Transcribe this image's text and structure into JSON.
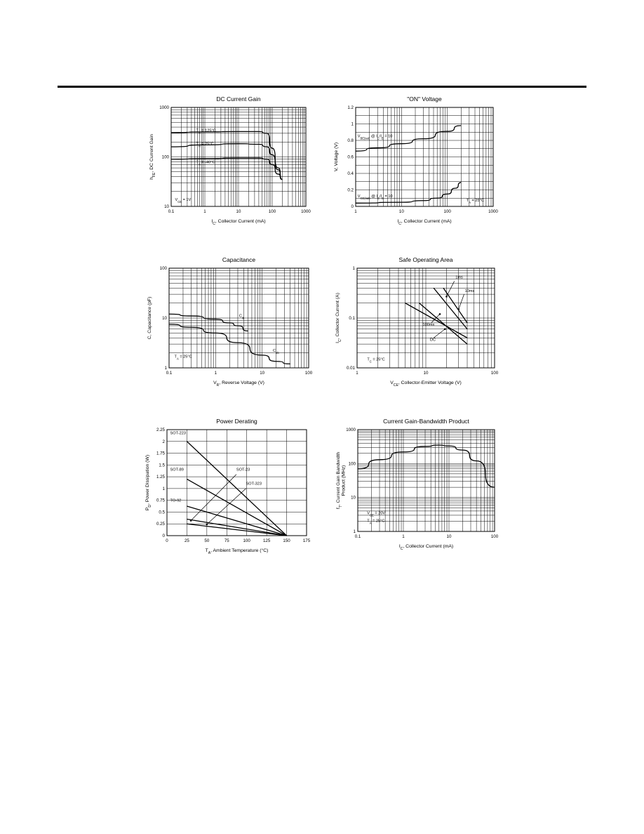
{
  "page": {
    "rule_color": "#000000"
  },
  "chart_data": [
    {
      "id": "dc-gain",
      "type": "line",
      "title": "DC Current Gain",
      "xlabel": "I_C, Collector Current (mA)",
      "ylabel": "h_FE, DC Current Gain",
      "xscale": "log",
      "yscale": "log",
      "xlim": [
        0.1,
        1000
      ],
      "ylim": [
        10,
        1000
      ],
      "xticks": [
        "0.1",
        "1",
        "10",
        "100",
        "1000"
      ],
      "yticks": [
        "10",
        "100",
        "1000"
      ],
      "grid": true,
      "series": [
        {
          "name": "T_A = 125°C",
          "x": [
            0.1,
            1,
            10,
            40,
            70,
            100,
            150,
            200
          ],
          "y": [
            310,
            320,
            325,
            325,
            300,
            150,
            60,
            35
          ]
        },
        {
          "name": "T_A = 25°C",
          "x": [
            0.1,
            1,
            10,
            40,
            70,
            100,
            150,
            200
          ],
          "y": [
            160,
            175,
            185,
            180,
            160,
            110,
            55,
            35
          ]
        },
        {
          "name": "T_A = -40°C",
          "x": [
            0.1,
            1,
            10,
            40,
            70,
            100,
            150,
            200
          ],
          "y": [
            90,
            92,
            95,
            95,
            90,
            70,
            45,
            35
          ]
        }
      ],
      "annotations": [
        "V_CE = 1V"
      ]
    },
    {
      "id": "on-voltage",
      "type": "line",
      "title": "\"ON\" Voltage",
      "xlabel": "I_C, Collector Current (mA)",
      "ylabel": "V, Voltage (V)",
      "xscale": "log",
      "yscale": "linear",
      "xlim": [
        1,
        1000
      ],
      "ylim": [
        0,
        1.2
      ],
      "xticks": [
        "1",
        "10",
        "100",
        "1000"
      ],
      "yticks": [
        "0",
        "0.2",
        "0.4",
        "0.6",
        "0.8",
        "1",
        "1.2"
      ],
      "grid": true,
      "series": [
        {
          "name": "V_BE(sat) @ I_C/I_B = 10",
          "x": [
            1,
            3,
            10,
            30,
            100,
            200
          ],
          "y": [
            0.67,
            0.71,
            0.76,
            0.82,
            0.91,
            0.98
          ]
        },
        {
          "name": "V_CE(sat) @ I_C/I_B = 10",
          "x": [
            1,
            10,
            30,
            60,
            100,
            150,
            200
          ],
          "y": [
            0.04,
            0.05,
            0.07,
            0.1,
            0.15,
            0.22,
            0.29
          ]
        }
      ],
      "annotations": [
        "T_A = 25°C"
      ]
    },
    {
      "id": "capacitance",
      "type": "line",
      "title": "Capacitance",
      "xlabel": "V_R, Reverse Voltage (V)",
      "ylabel": "C, Capacitance (pF)",
      "xscale": "log",
      "yscale": "log",
      "xlim": [
        0.1,
        100
      ],
      "ylim": [
        1,
        100
      ],
      "xticks": [
        "0.1",
        "1",
        "10",
        "100"
      ],
      "yticks": [
        "1",
        "10",
        "100"
      ],
      "grid": true,
      "series": [
        {
          "name": "C_ib",
          "x": [
            0.1,
            0.3,
            1,
            2,
            3,
            5
          ],
          "y": [
            12,
            11,
            9.5,
            8,
            7,
            5.5
          ]
        },
        {
          "name": "C_ob",
          "x": [
            0.1,
            0.3,
            1,
            3,
            10,
            20,
            40
          ],
          "y": [
            7.5,
            6.5,
            5,
            3.2,
            1.8,
            1.35,
            1.2
          ]
        }
      ],
      "annotations": [
        "T_A = 25°C"
      ]
    },
    {
      "id": "soa",
      "type": "line",
      "title": "Safe Operating Area",
      "xlabel": "V_CE, Collector-Emitter Voltage (V)",
      "ylabel": "I_C, Collector Current (A)",
      "xscale": "log",
      "yscale": "log",
      "xlim": [
        1,
        100
      ],
      "ylim": [
        0.01,
        1
      ],
      "xticks": [
        "1",
        "10",
        "100"
      ],
      "yticks": [
        "0.01",
        "0.1",
        "1"
      ],
      "grid": true,
      "series": [
        {
          "name": "1ms",
          "x": [
            13,
            40
          ],
          "y": [
            0.4,
            0.06
          ]
        },
        {
          "name": "10ms",
          "x": [
            18,
            40
          ],
          "y": [
            0.4,
            0.08
          ]
        },
        {
          "name": "100ms",
          "x": [
            5,
            40
          ],
          "y": [
            0.2,
            0.04
          ]
        },
        {
          "name": "DC",
          "x": [
            8,
            40
          ],
          "y": [
            0.2,
            0.03
          ]
        }
      ],
      "annotations": [
        "T_C = 25°C"
      ]
    },
    {
      "id": "power-derating",
      "type": "line",
      "title": "Power Derating",
      "xlabel": "T_A, Ambient Temperature (°C)",
      "ylabel": "P_D, Power Dissipation (W)",
      "xscale": "linear",
      "yscale": "linear",
      "xlim": [
        0,
        175
      ],
      "ylim": [
        0,
        2.25
      ],
      "xticks": [
        "0",
        "25",
        "50",
        "75",
        "100",
        "125",
        "150",
        "175"
      ],
      "yticks": [
        "0",
        "0.25",
        "0.5",
        "0.75",
        "1",
        "1.25",
        "1.5",
        "1.75",
        "2",
        "2.25"
      ],
      "grid": true,
      "series": [
        {
          "name": "SOT-223",
          "x": [
            25,
            150
          ],
          "y": [
            2.0,
            0
          ]
        },
        {
          "name": "SOT-89",
          "x": [
            25,
            150
          ],
          "y": [
            1.2,
            0
          ]
        },
        {
          "name": "TO-92",
          "x": [
            25,
            150
          ],
          "y": [
            0.625,
            0
          ]
        },
        {
          "name": "SOT-23",
          "x": [
            25,
            150
          ],
          "y": [
            0.35,
            0
          ]
        },
        {
          "name": "SOT-323",
          "x": [
            25,
            150
          ],
          "y": [
            0.25,
            0
          ]
        }
      ],
      "annotations": []
    },
    {
      "id": "gain-bandwidth",
      "type": "line",
      "title": "Current Gain-Bandwidth Product",
      "xlabel": "I_C, Collector Current (mA)",
      "ylabel": "f_T, Current Gain Bandwidth Product (MHz)",
      "xscale": "log",
      "yscale": "log",
      "xlim": [
        0.1,
        100
      ],
      "ylim": [
        1,
        1000
      ],
      "xticks": [
        "0.1",
        "1",
        "10",
        "100"
      ],
      "yticks": [
        "1",
        "10",
        "100",
        "1000"
      ],
      "grid": true,
      "series": [
        {
          "name": "f_T",
          "x": [
            0.1,
            0.3,
            1,
            3,
            6,
            10,
            20,
            40,
            100
          ],
          "y": [
            70,
            130,
            220,
            320,
            350,
            330,
            250,
            120,
            20
          ]
        }
      ],
      "annotations": [
        "V_CE = 20V",
        "T_A = 25°C"
      ]
    }
  ]
}
